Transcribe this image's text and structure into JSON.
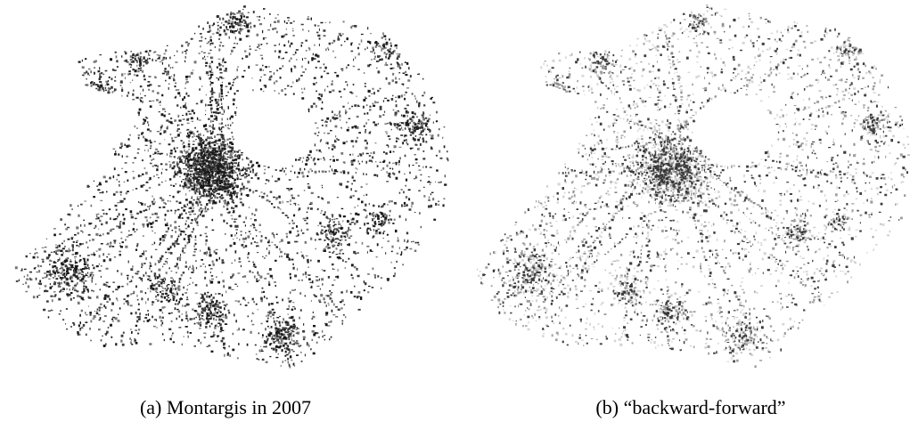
{
  "figure": {
    "panels": [
      {
        "caption": "(a) Montargis in 2007"
      },
      {
        "caption": "(b) “backward-forward”"
      }
    ]
  }
}
